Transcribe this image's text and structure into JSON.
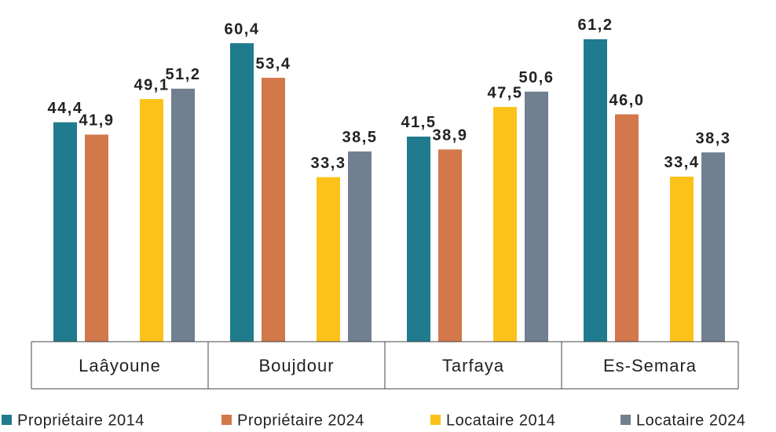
{
  "chart_data": {
    "type": "bar",
    "categories": [
      "Laâyoune",
      "Boujdour",
      "Tarfaya",
      "Es-Semara"
    ],
    "series": [
      {
        "name": "Propriétaire 2014",
        "color": "#1f7b8d",
        "values": [
          44.4,
          60.4,
          41.5,
          61.2
        ],
        "value_labels": [
          "44,4",
          "60,4",
          "41,5",
          "61,2"
        ]
      },
      {
        "name": "Propriétaire 2024",
        "color": "#d2784b",
        "values": [
          41.9,
          53.4,
          38.9,
          46.0
        ],
        "value_labels": [
          "41,9",
          "53,4",
          "38,9",
          "46,0"
        ]
      },
      {
        "name": "Locataire 2014",
        "color": "#fcc219",
        "values": [
          49.1,
          33.3,
          47.5,
          33.4
        ],
        "value_labels": [
          "49,1",
          "33,3",
          "47,5",
          "33,4"
        ]
      },
      {
        "name": "Locataire 2024",
        "color": "#718090",
        "values": [
          51.2,
          38.5,
          50.6,
          38.3
        ],
        "value_labels": [
          "51,2",
          "38,5",
          "50,6",
          "38,3"
        ]
      }
    ],
    "ylim": [
      0,
      65
    ],
    "legend": "bottom"
  }
}
